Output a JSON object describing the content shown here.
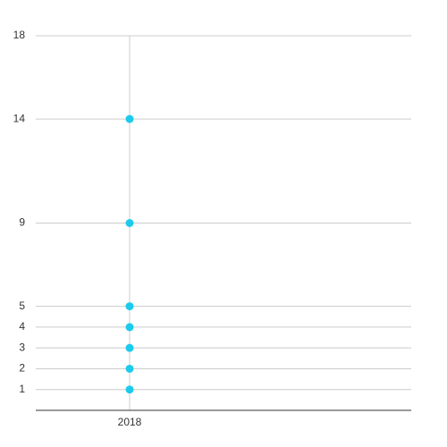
{
  "chart_data": {
    "type": "dot",
    "categories": [
      "2018"
    ],
    "values": [
      [
        1,
        2,
        3,
        4,
        5,
        9,
        14
      ]
    ],
    "color": "#1ccbec",
    "ylim": [
      0,
      18
    ],
    "yticks": [
      1,
      2,
      3,
      4,
      5,
      9,
      14,
      18
    ],
    "grid": true
  }
}
